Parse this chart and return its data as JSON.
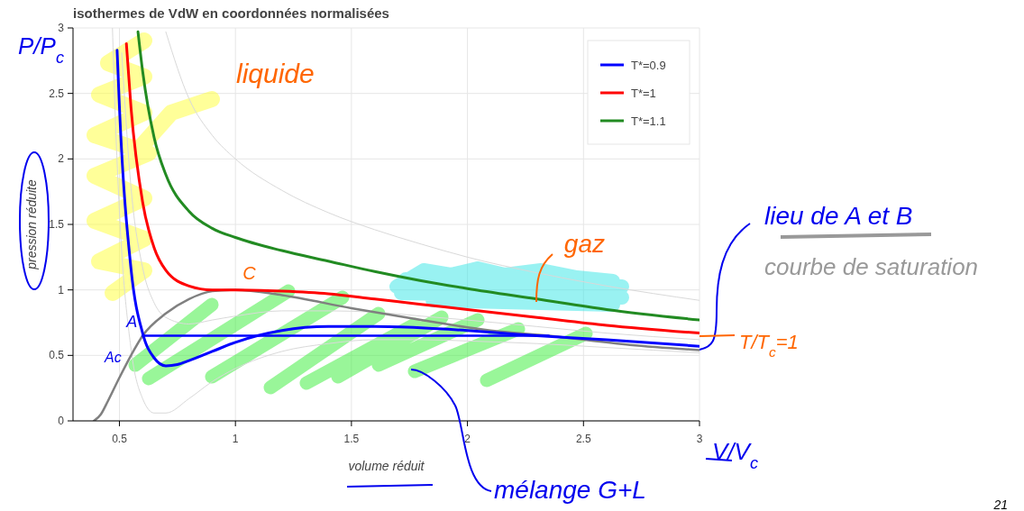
{
  "chart_data": {
    "type": "line",
    "title": "isothermes de VdW en coordonnées normalisées",
    "xlabel": "volume réduit",
    "ylabel": "pression réduite",
    "xlim": [
      0.3,
      3
    ],
    "ylim": [
      0,
      3
    ],
    "xticks": [
      0.5,
      1,
      1.5,
      2,
      2.5,
      3
    ],
    "yticks": [
      0,
      0.5,
      1,
      1.5,
      2,
      2.5,
      3
    ],
    "grid": true,
    "legend": "top right",
    "series": [
      {
        "color": "#d9d9d9",
        "x": [
          0.47,
          0.48,
          0.5,
          0.55,
          0.6,
          0.65,
          0.7,
          0.8,
          0.9,
          1.0,
          1.2,
          1.4,
          1.6,
          1.8,
          2.0,
          2.3,
          2.6,
          3.0
        ],
        "values": [
          3.0,
          2.43,
          1.6,
          0.55,
          0.17,
          0.06,
          0.06,
          0.17,
          0.3,
          0.4,
          0.53,
          0.59,
          0.62,
          0.62,
          0.61,
          0.59,
          0.56,
          0.52
        ]
      },
      {
        "color": "#d9d9d9",
        "x": [
          0.51,
          0.55,
          0.6,
          0.65,
          0.7,
          0.8,
          0.9,
          1.0,
          1.2,
          1.4,
          1.6,
          1.8,
          2.0,
          2.3,
          2.6,
          3.0
        ],
        "values": [
          2.81,
          1.78,
          1.17,
          0.9,
          0.79,
          0.74,
          0.77,
          0.8,
          0.84,
          0.84,
          0.83,
          0.8,
          0.77,
          0.72,
          0.67,
          0.62
        ]
      },
      {
        "color": "#d9d9d9",
        "x": [
          0.7,
          0.8,
          0.9,
          1.0,
          1.2,
          1.4,
          1.6,
          1.8,
          2.0,
          2.3,
          2.6,
          3.0
        ],
        "values": [
          2.97,
          2.46,
          2.18,
          2.0,
          1.76,
          1.59,
          1.46,
          1.35,
          1.25,
          1.13,
          1.03,
          0.92
        ]
      },
      {
        "color": "#808080",
        "x": [
          0.39,
          0.42,
          0.45,
          0.5,
          0.55,
          0.6,
          0.7,
          0.8,
          0.9,
          1.0,
          1.2,
          1.5,
          1.8,
          2.1,
          2.35,
          2.7,
          3.0
        ],
        "values": [
          0,
          0.05,
          0.15,
          0.33,
          0.5,
          0.65,
          0.82,
          0.93,
          0.99,
          1.0,
          0.96,
          0.86,
          0.77,
          0.69,
          0.65,
          0.58,
          0.54
        ]
      },
      {
        "color": "#0000ff",
        "x": [
          0.6,
          2.35
        ],
        "values": [
          0.65,
          0.65
        ]
      },
      {
        "name": "T*=0.9",
        "color": "#0000ff",
        "x": [
          0.49,
          0.5,
          0.55,
          0.6,
          0.65,
          0.7,
          0.75,
          0.8,
          0.9,
          1.0,
          1.2,
          1.4,
          1.6,
          1.8,
          2.0,
          2.3,
          2.6,
          3.0
        ],
        "values": [
          2.83,
          2.4,
          1.16,
          0.67,
          0.48,
          0.42,
          0.43,
          0.46,
          0.53,
          0.6,
          0.69,
          0.72,
          0.72,
          0.71,
          0.69,
          0.65,
          0.62,
          0.57
        ]
      },
      {
        "name": "T*=1",
        "color": "#ff0000",
        "x": [
          0.53,
          0.55,
          0.6,
          0.65,
          0.7,
          0.8,
          0.9,
          1.0,
          1.2,
          1.4,
          1.6,
          1.8,
          2.0,
          2.3,
          2.6,
          3.0
        ],
        "values": [
          2.88,
          2.39,
          1.67,
          1.32,
          1.15,
          1.03,
          1.0,
          1.0,
          0.99,
          0.97,
          0.93,
          0.89,
          0.85,
          0.79,
          0.73,
          0.67
        ]
      },
      {
        "name": "T*=1.1",
        "color": "#228b22",
        "x": [
          0.58,
          0.6,
          0.65,
          0.7,
          0.8,
          0.9,
          1.0,
          1.2,
          1.4,
          1.6,
          1.8,
          2.0,
          2.3,
          2.6,
          3.0
        ],
        "values": [
          2.97,
          2.67,
          2.16,
          1.88,
          1.6,
          1.47,
          1.4,
          1.3,
          1.22,
          1.14,
          1.07,
          1.01,
          0.93,
          0.85,
          0.77
        ]
      }
    ],
    "annotations": [
      "P/P$_{c}$",
      "liquide",
      {
        "text": "gaz",
        "x": 2.3,
        "y": 0.93
      },
      {
        "text": "C",
        "x": 1,
        "y": 1
      },
      {
        "text": "A",
        "x": 0.6,
        "y": 0.65
      },
      "Ac",
      {
        "text": "lieu de A et B",
        "x": 3,
        "y": 0.54
      },
      "courbe de saturation",
      {
        "text": "T/T$_{c}$=1",
        "x": 3,
        "y": 0.67
      },
      "mélange G+L",
      "V/V$_{c}$",
      "21"
    ]
  }
}
